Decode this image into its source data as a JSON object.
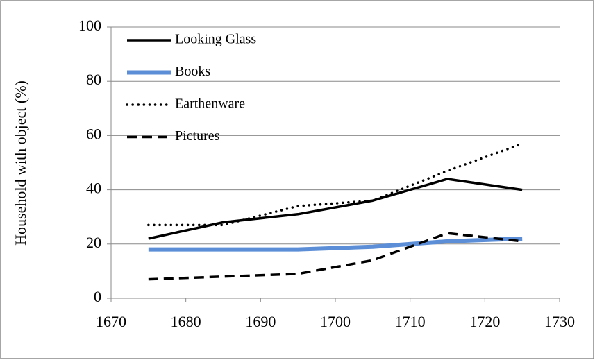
{
  "chart_data": {
    "type": "line",
    "y_label": "Household with object (%)",
    "x": [
      1675,
      1685,
      1695,
      1705,
      1715,
      1725
    ],
    "series": [
      {
        "name": "Looking Glass",
        "color": "#000000",
        "style": "solid",
        "values": [
          22,
          28,
          31,
          36,
          44,
          40
        ]
      },
      {
        "name": "Books",
        "color": "#5b8ed6",
        "style": "solid",
        "values": [
          18,
          18,
          18,
          19,
          21,
          22
        ]
      },
      {
        "name": "Earthenware",
        "color": "#000000",
        "style": "dotted",
        "values": [
          27,
          27,
          34,
          36,
          47,
          57
        ]
      },
      {
        "name": "Pictures",
        "color": "#000000",
        "style": "dashed",
        "values": [
          7,
          8,
          9,
          14,
          24,
          21
        ]
      }
    ],
    "xlim": [
      1670,
      1730
    ],
    "xticks": [
      1670,
      1680,
      1690,
      1700,
      1710,
      1720,
      1730
    ],
    "ylim": [
      0,
      100
    ],
    "yticks": [
      0,
      20,
      40,
      60,
      80,
      100
    ],
    "grid": true,
    "legend": "top-left"
  }
}
